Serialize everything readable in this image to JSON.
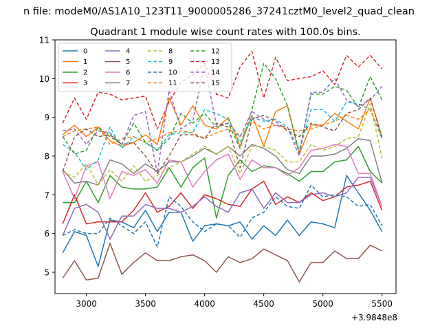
{
  "chart_data": {
    "type": "line",
    "suptitle": "n file: modeM0/AS1A10_123T11_9000005286_37241cztM0_level2_quad_clean",
    "title": "Quadrant 1 module wise count rates with 100.0s bins.",
    "xlabel": "",
    "ylabel": "",
    "offset_label": "+3.9848e8",
    "x": [
      2800,
      2900,
      3000,
      3100,
      3200,
      3300,
      3400,
      3500,
      3600,
      3700,
      3800,
      3900,
      4000,
      4100,
      4200,
      4300,
      4400,
      4500,
      4600,
      4700,
      4800,
      4900,
      5000,
      5100,
      5200,
      5300,
      5400,
      5500
    ],
    "xlim": [
      2735,
      5618
    ],
    "ylim": [
      4.45,
      11.0
    ],
    "xticks": [
      3000,
      3500,
      4000,
      4500,
      5000,
      5500
    ],
    "yticks": [
      5,
      6,
      7,
      8,
      9,
      10,
      11
    ],
    "legend": {
      "placement": "top-left",
      "ncol": 4
    },
    "grid": false,
    "series": [
      {
        "name": "0",
        "color": "#1f77b4",
        "dash": "solid",
        "values": [
          5.5,
          6.05,
          5.95,
          5.15,
          6.35,
          6.3,
          6.15,
          6.6,
          6.05,
          6.55,
          6.55,
          5.8,
          6.2,
          6.25,
          6.2,
          6.3,
          5.85,
          6.2,
          5.95,
          6.35,
          5.95,
          6.3,
          6.25,
          6.15,
          7.5,
          7.05,
          6.6,
          6.05
        ]
      },
      {
        "name": "1",
        "color": "#ff7f0e",
        "dash": "solid",
        "values": [
          8.55,
          8.8,
          8.5,
          8.75,
          8.4,
          8.25,
          8.35,
          8.55,
          8.3,
          9.5,
          8.8,
          9.3,
          8.8,
          8.7,
          9.0,
          8.25,
          9.05,
          8.25,
          9.15,
          9.3,
          8.05,
          8.8,
          8.8,
          9.1,
          8.9,
          8.7,
          9.5,
          8.5
        ]
      },
      {
        "name": "2",
        "color": "#2ca02c",
        "dash": "solid",
        "values": [
          6.8,
          6.8,
          7.35,
          6.8,
          7.5,
          7.2,
          7.15,
          7.15,
          7.2,
          7.7,
          7.2,
          7.7,
          7.95,
          6.4,
          7.5,
          7.9,
          7.6,
          7.75,
          7.7,
          7.55,
          7.35,
          7.6,
          7.6,
          7.85,
          7.9,
          8.25,
          7.6,
          7.3
        ]
      },
      {
        "name": "3",
        "color": "#d62728",
        "dash": "solid",
        "values": [
          6.25,
          7.0,
          6.25,
          6.3,
          6.3,
          6.3,
          6.6,
          7.05,
          6.55,
          6.7,
          7.05,
          6.65,
          7.0,
          6.9,
          6.75,
          6.7,
          7.15,
          7.35,
          6.75,
          6.95,
          6.8,
          7.05,
          6.85,
          6.95,
          7.2,
          7.25,
          7.35,
          6.6
        ]
      },
      {
        "name": "4",
        "color": "#9467bd",
        "dash": "solid",
        "values": [
          5.95,
          6.65,
          6.75,
          6.55,
          5.85,
          6.45,
          6.45,
          6.75,
          6.65,
          6.65,
          6.55,
          6.7,
          6.95,
          6.7,
          6.55,
          7.05,
          7.15,
          6.65,
          7.05,
          6.8,
          6.8,
          7.0,
          7.05,
          6.95,
          7.05,
          7.45,
          7.45,
          6.7
        ]
      },
      {
        "name": "5",
        "color": "#8c564b",
        "dash": "solid",
        "values": [
          4.85,
          5.3,
          4.8,
          4.85,
          5.75,
          4.95,
          5.25,
          5.5,
          5.3,
          5.3,
          5.4,
          5.45,
          5.3,
          5.0,
          5.4,
          5.25,
          5.35,
          5.6,
          5.45,
          5.3,
          4.75,
          5.25,
          5.25,
          5.55,
          5.35,
          5.35,
          5.7,
          5.55
        ]
      },
      {
        "name": "6",
        "color": "#e377c2",
        "dash": "solid",
        "values": [
          7.6,
          6.9,
          7.75,
          7.85,
          6.9,
          7.6,
          7.5,
          7.65,
          7.3,
          7.9,
          7.85,
          7.2,
          7.6,
          7.9,
          8.05,
          7.4,
          7.9,
          7.7,
          7.7,
          7.5,
          7.7,
          8.15,
          8.2,
          8.3,
          8.25,
          7.55,
          7.55,
          6.7
        ]
      },
      {
        "name": "7",
        "color": "#7f7f7f",
        "dash": "solid",
        "values": [
          7.65,
          7.3,
          7.35,
          7.25,
          7.9,
          7.8,
          7.55,
          7.8,
          7.6,
          7.85,
          7.85,
          8.0,
          8.2,
          8.05,
          8.25,
          8.0,
          8.3,
          8.2,
          8.0,
          7.65,
          7.55,
          8.0,
          8.0,
          8.05,
          8.2,
          8.45,
          8.4,
          7.3
        ]
      },
      {
        "name": "8",
        "color": "#bcbd22",
        "dash": "5,3",
        "values": [
          7.6,
          7.45,
          7.8,
          7.25,
          7.65,
          7.35,
          7.75,
          7.35,
          7.5,
          7.7,
          7.85,
          8.05,
          8.25,
          8.05,
          8.25,
          7.55,
          8.25,
          8.25,
          8.15,
          7.85,
          7.85,
          8.3,
          8.15,
          8.25,
          8.45,
          8.5,
          9.35,
          7.95
        ]
      },
      {
        "name": "9",
        "color": "#17becf",
        "dash": "5,3",
        "values": [
          8.3,
          8.1,
          7.65,
          7.9,
          8.75,
          8.2,
          8.5,
          8.35,
          8.15,
          8.55,
          8.6,
          8.6,
          9.2,
          9.1,
          8.95,
          8.35,
          9.0,
          8.9,
          8.95,
          8.75,
          8.15,
          9.2,
          9.2,
          8.9,
          9.4,
          9.35,
          9.2,
          8.45
        ]
      },
      {
        "name": "10",
        "color": "#1f77b4",
        "dash": "5,3",
        "values": [
          5.95,
          6.1,
          6.0,
          6.0,
          6.4,
          6.2,
          6.0,
          6.3,
          5.65,
          6.95,
          6.7,
          6.3,
          6.05,
          6.25,
          6.2,
          5.9,
          6.4,
          6.55,
          6.95,
          6.7,
          6.65,
          7.25,
          6.95,
          7.0,
          6.95,
          6.7,
          6.75,
          6.2
        ]
      },
      {
        "name": "11",
        "color": "#ff7f0e",
        "dash": "5,3",
        "values": [
          8.5,
          8.65,
          8.7,
          8.75,
          8.3,
          8.45,
          8.5,
          8.35,
          8.45,
          8.6,
          8.65,
          8.6,
          8.45,
          8.6,
          8.7,
          8.5,
          8.9,
          8.7,
          8.8,
          8.7,
          8.65,
          8.7,
          8.8,
          8.9,
          9.05,
          8.95,
          9.2,
          8.5
        ]
      },
      {
        "name": "12",
        "color": "#2ca02c",
        "dash": "5,3",
        "values": [
          8.5,
          8.05,
          8.15,
          8.75,
          8.5,
          8.3,
          8.85,
          8.35,
          8.15,
          8.45,
          9.1,
          8.85,
          9.1,
          8.75,
          8.85,
          8.2,
          9.2,
          10.4,
          10.0,
          9.3,
          8.1,
          9.6,
          9.6,
          9.8,
          9.7,
          9.25,
          10.05,
          9.45
        ]
      },
      {
        "name": "13",
        "color": "#d62728",
        "dash": "5,3",
        "values": [
          8.85,
          9.5,
          8.95,
          9.65,
          9.6,
          9.45,
          9.5,
          9.55,
          8.7,
          9.4,
          9.9,
          10.1,
          10.4,
          9.6,
          9.5,
          10.3,
          10.7,
          9.5,
          10.55,
          9.95,
          10.0,
          10.05,
          10.2,
          9.85,
          10.6,
          10.3,
          10.6,
          10.25
        ]
      },
      {
        "name": "14",
        "color": "#9467bd",
        "dash": "5,3",
        "values": [
          8.65,
          8.7,
          8.3,
          8.65,
          8.6,
          8.3,
          9.05,
          9.15,
          7.55,
          9.7,
          8.7,
          8.9,
          10.35,
          8.8,
          8.85,
          8.5,
          9.15,
          8.95,
          8.8,
          8.75,
          8.0,
          9.65,
          9.65,
          10.0,
          9.45,
          9.3,
          9.45,
          9.8
        ]
      },
      {
        "name": "15",
        "color": "#8c564b",
        "dash": "5,3",
        "values": [
          7.6,
          8.5,
          8.7,
          8.5,
          8.55,
          8.3,
          8.35,
          8.0,
          7.55,
          8.0,
          8.55,
          8.55,
          8.45,
          8.85,
          8.75,
          7.7,
          8.95,
          9.05,
          8.9,
          8.65,
          8.5,
          8.85,
          8.75,
          8.65,
          9.1,
          9.2,
          9.5,
          8.45
        ]
      }
    ]
  }
}
